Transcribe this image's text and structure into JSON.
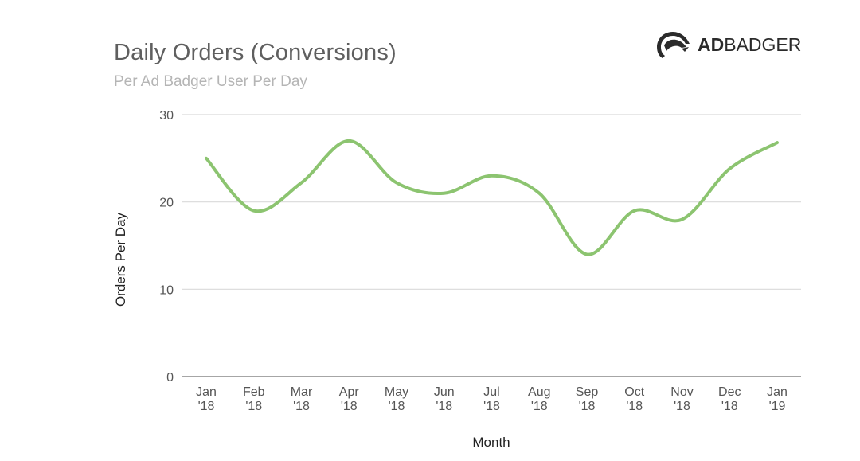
{
  "header": {
    "title": "Daily Orders (Conversions)",
    "subtitle": "Per Ad Badger User Per Day"
  },
  "logo": {
    "bold": "AD",
    "light": "BADGER",
    "icon": "badger-head-icon"
  },
  "colors": {
    "line": "#8cc470",
    "grid": "#d9d9d9",
    "axis": "#888888"
  },
  "chart_data": {
    "type": "line",
    "title": "Daily Orders (Conversions)",
    "subtitle": "Per Ad Badger User Per Day",
    "xlabel": "Month",
    "ylabel": "Orders Per Day",
    "ylim": [
      0,
      30
    ],
    "yticks": [
      "0",
      "10",
      "20",
      "30"
    ],
    "grid": true,
    "categories": [
      [
        "Jan",
        "'18"
      ],
      [
        "Feb",
        "'18"
      ],
      [
        "Mar",
        "'18"
      ],
      [
        "Apr",
        "'18"
      ],
      [
        "May",
        "'18"
      ],
      [
        "Jun",
        "'18"
      ],
      [
        "Jul",
        "'18"
      ],
      [
        "Aug",
        "'18"
      ],
      [
        "Sep",
        "'18"
      ],
      [
        "Oct",
        "'18"
      ],
      [
        "Nov",
        "'18"
      ],
      [
        "Dec",
        "'18"
      ],
      [
        "Jan",
        "'19"
      ]
    ],
    "series": [
      {
        "values": [
          25,
          19,
          22.2,
          27,
          22.2,
          21,
          23,
          21,
          14,
          19,
          18,
          23.8,
          26.8
        ]
      }
    ]
  }
}
